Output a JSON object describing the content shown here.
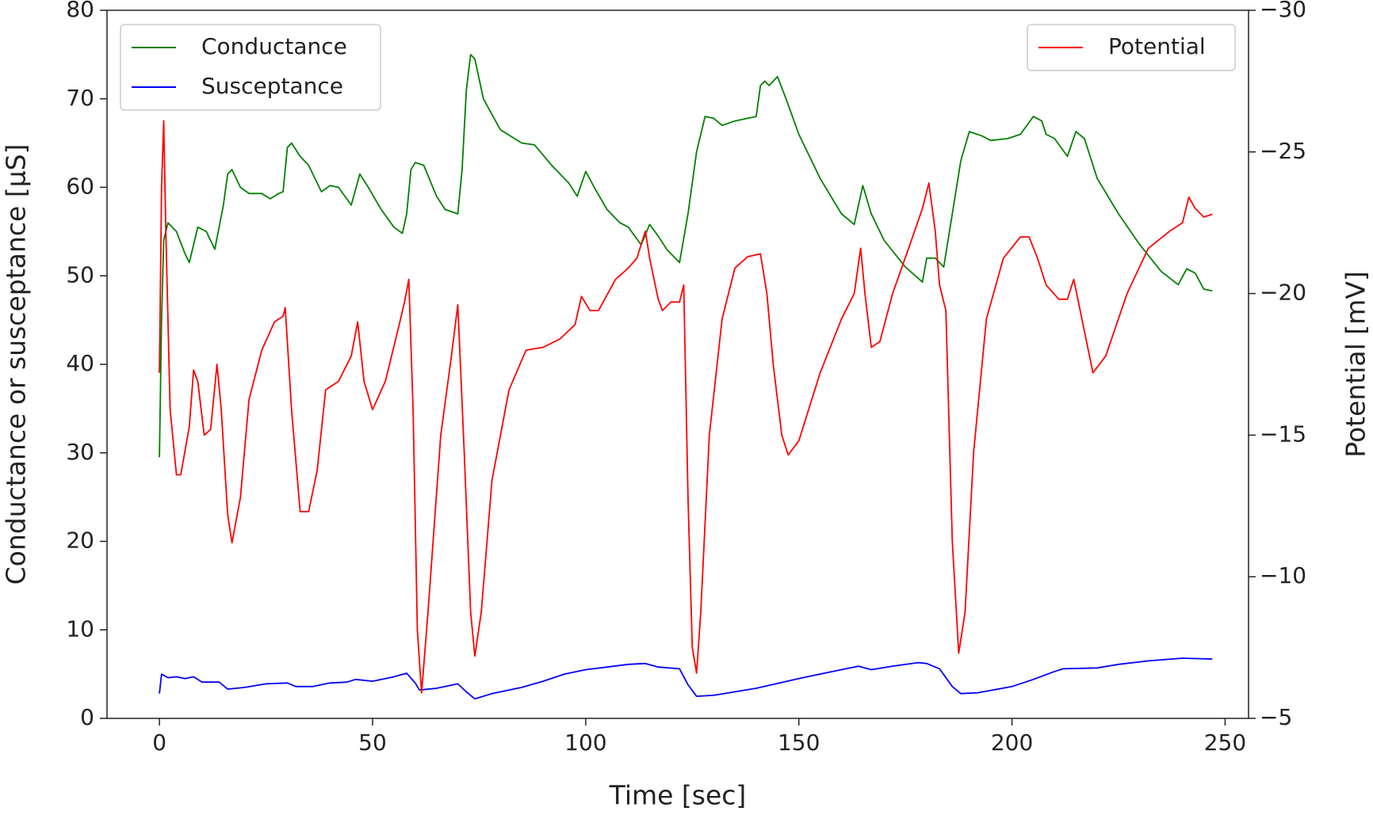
{
  "chart_data": {
    "type": "line",
    "xlabel": "Time [sec]",
    "ylabel": "Conductance or susceptance [µS]",
    "y2label": "Potential [mV]",
    "xlim": [
      -12.3,
      255.5
    ],
    "xticks": [
      0,
      50,
      100,
      150,
      200,
      250
    ],
    "ylim": [
      0,
      80
    ],
    "yticks": [
      0,
      10,
      20,
      30,
      40,
      50,
      60,
      70,
      80
    ],
    "y2lim": [
      -5,
      -30
    ],
    "y2ticks": [
      {
        "value": -5,
        "label": "−5"
      },
      {
        "value": -10,
        "label": "−10"
      },
      {
        "value": -15,
        "label": "−15"
      },
      {
        "value": -20,
        "label": "−20"
      },
      {
        "value": -25,
        "label": "−25"
      },
      {
        "value": -30,
        "label": "−30"
      }
    ],
    "legend": "upper left",
    "y2_legend": "upper right",
    "series": [
      {
        "name": "Conductance",
        "color": "#008000",
        "x": [
          0,
          0.5,
          1,
          2,
          4,
          6,
          7,
          9,
          11,
          13,
          15,
          16,
          17,
          19,
          21,
          24,
          26,
          28,
          29,
          30,
          31,
          33,
          35,
          38,
          40,
          42,
          45,
          47,
          49,
          52,
          55,
          57,
          58,
          59,
          60,
          62,
          65,
          67,
          70,
          71,
          72,
          73,
          74,
          76,
          80,
          85,
          88,
          92,
          96,
          98,
          100,
          102,
          105,
          108,
          110,
          113,
          115,
          117,
          119,
          122,
          124,
          126,
          128,
          130,
          132,
          135,
          140,
          141,
          142,
          143,
          145,
          147,
          150,
          155,
          160,
          163,
          165,
          167,
          170,
          175,
          179,
          180,
          182,
          184,
          186,
          188,
          190,
          193,
          195,
          199,
          202,
          205,
          207,
          208,
          210,
          213,
          215,
          217,
          220,
          225,
          230,
          235,
          239,
          241,
          243,
          245,
          247
        ],
        "values": [
          29.5,
          45,
          54,
          56,
          55,
          52.5,
          51.5,
          55.5,
          55,
          53,
          58,
          61.5,
          62,
          60,
          59.3,
          59.3,
          58.7,
          59.3,
          59.5,
          64.5,
          65,
          63.5,
          62.5,
          59.5,
          60.2,
          60,
          58,
          61.5,
          60,
          57.5,
          55.5,
          54.8,
          57,
          62,
          62.8,
          62.5,
          59,
          57.5,
          57,
          62,
          71,
          75,
          74.5,
          70,
          66.5,
          65,
          64.8,
          62.5,
          60.5,
          59,
          61.8,
          60,
          57.5,
          56,
          55.5,
          53.5,
          55.8,
          54.5,
          53,
          51.5,
          57,
          64,
          68,
          67.8,
          67,
          67.5,
          68,
          71.5,
          72,
          71.5,
          72.5,
          70,
          66,
          61,
          57,
          55.8,
          60.2,
          57,
          54,
          51,
          49.3,
          52,
          52,
          51,
          57,
          63,
          66.3,
          65.8,
          65.3,
          65.5,
          66,
          68,
          67.5,
          66,
          65.5,
          63.5,
          66.3,
          65.5,
          61,
          57,
          53.5,
          50.5,
          49,
          50.8,
          50.3,
          48.5,
          48.3
        ]
      },
      {
        "name": "Susceptance",
        "color": "#0000ff",
        "x": [
          0,
          0.5,
          2,
          4,
          6,
          8,
          10,
          14,
          16,
          20,
          25,
          30,
          32,
          36,
          40,
          44,
          46,
          50,
          55,
          58,
          60,
          61,
          65,
          70,
          72,
          74,
          78,
          85,
          90,
          95,
          100,
          105,
          110,
          114,
          117,
          122,
          124,
          126,
          130,
          140,
          150,
          160,
          164,
          167,
          172,
          178,
          180,
          183,
          186,
          188,
          192,
          200,
          205,
          210,
          212,
          220,
          225,
          232,
          240,
          247
        ],
        "values": [
          2.8,
          5,
          4.6,
          4.7,
          4.5,
          4.7,
          4.1,
          4.1,
          3.3,
          3.5,
          3.9,
          4.0,
          3.6,
          3.6,
          4.0,
          4.1,
          4.4,
          4.2,
          4.7,
          5.1,
          4.0,
          3.2,
          3.4,
          3.9,
          3.0,
          2.2,
          2.8,
          3.5,
          4.2,
          5.0,
          5.5,
          5.8,
          6.1,
          6.2,
          5.8,
          5.6,
          3.8,
          2.5,
          2.6,
          3.4,
          4.5,
          5.5,
          5.9,
          5.5,
          5.9,
          6.3,
          6.2,
          5.6,
          3.6,
          2.8,
          2.9,
          3.6,
          4.4,
          5.3,
          5.6,
          5.7,
          6.1,
          6.5,
          6.8,
          6.7
        ]
      },
      {
        "name": "Potential",
        "color": "#ff0000",
        "axis": "y2",
        "x": [
          0,
          0.5,
          1,
          1.5,
          2.5,
          4,
          5,
          7,
          8,
          9,
          10.5,
          12,
          13.5,
          14.5,
          16,
          17,
          19,
          21,
          24,
          27,
          29,
          29.5,
          31,
          33,
          35,
          37,
          39,
          42,
          45,
          46.5,
          48,
          50,
          53,
          56,
          57.5,
          58.5,
          59.5,
          60.5,
          61.5,
          63,
          66,
          68.5,
          70,
          71.5,
          73,
          74,
          75.5,
          78,
          82,
          86,
          90,
          94,
          97.5,
          99,
          101,
          103,
          107,
          110,
          112,
          114,
          115,
          117,
          118,
          120,
          122,
          123,
          124,
          125,
          126,
          127,
          129,
          132,
          135,
          138,
          141,
          142.5,
          144,
          146,
          147.5,
          150,
          155,
          160,
          163,
          164.5,
          165.5,
          167,
          169,
          172,
          176,
          179,
          180.5,
          182,
          183,
          184.5,
          186,
          187.5,
          189,
          191,
          194,
          198,
          202,
          204,
          206,
          208,
          211,
          213,
          214.5,
          216,
          219,
          222,
          227,
          232,
          237,
          240,
          241.5,
          243,
          245,
          247
        ],
        "values": [
          -17.2,
          -23.75,
          -26.1,
          -22.2,
          -15.9,
          -13.6,
          -13.6,
          -15.3,
          -17.3,
          -16.9,
          -15,
          -15.2,
          -17.5,
          -15.9,
          -12.2,
          -11.2,
          -12.8,
          -16.25,
          -18,
          -19,
          -19.2,
          -19.5,
          -15.9,
          -12.3,
          -12.3,
          -13.75,
          -16.6,
          -16.9,
          -17.8,
          -19,
          -16.9,
          -15.9,
          -16.9,
          -18.75,
          -19.7,
          -20.5,
          -15.9,
          -8.1,
          -5.9,
          -8.75,
          -15,
          -17.8,
          -19.6,
          -14.4,
          -8.75,
          -7.2,
          -8.75,
          -13.4,
          -16.6,
          -18,
          -18.1,
          -18.4,
          -18.9,
          -19.9,
          -19.4,
          -19.4,
          -20.5,
          -20.9,
          -21.25,
          -22.2,
          -21.25,
          -19.8,
          -19.4,
          -19.7,
          -19.7,
          -20.3,
          -12.8,
          -7.5,
          -6.6,
          -8.75,
          -15,
          -19.1,
          -20.9,
          -21.3,
          -21.4,
          -20,
          -17.5,
          -15,
          -14.3,
          -14.8,
          -17.2,
          -19.1,
          -20,
          -21.6,
          -20,
          -18.1,
          -18.3,
          -20,
          -21.7,
          -23,
          -23.9,
          -22.2,
          -20.3,
          -19.4,
          -11.25,
          -7.3,
          -8.75,
          -14.4,
          -19.1,
          -21.25,
          -22,
          -22,
          -21.25,
          -20.3,
          -19.8,
          -19.8,
          -20.5,
          -19.4,
          -17.2,
          -17.8,
          -20,
          -21.6,
          -22.2,
          -22.5,
          -23.4,
          -23,
          -22.7,
          -22.8
        ]
      }
    ]
  }
}
